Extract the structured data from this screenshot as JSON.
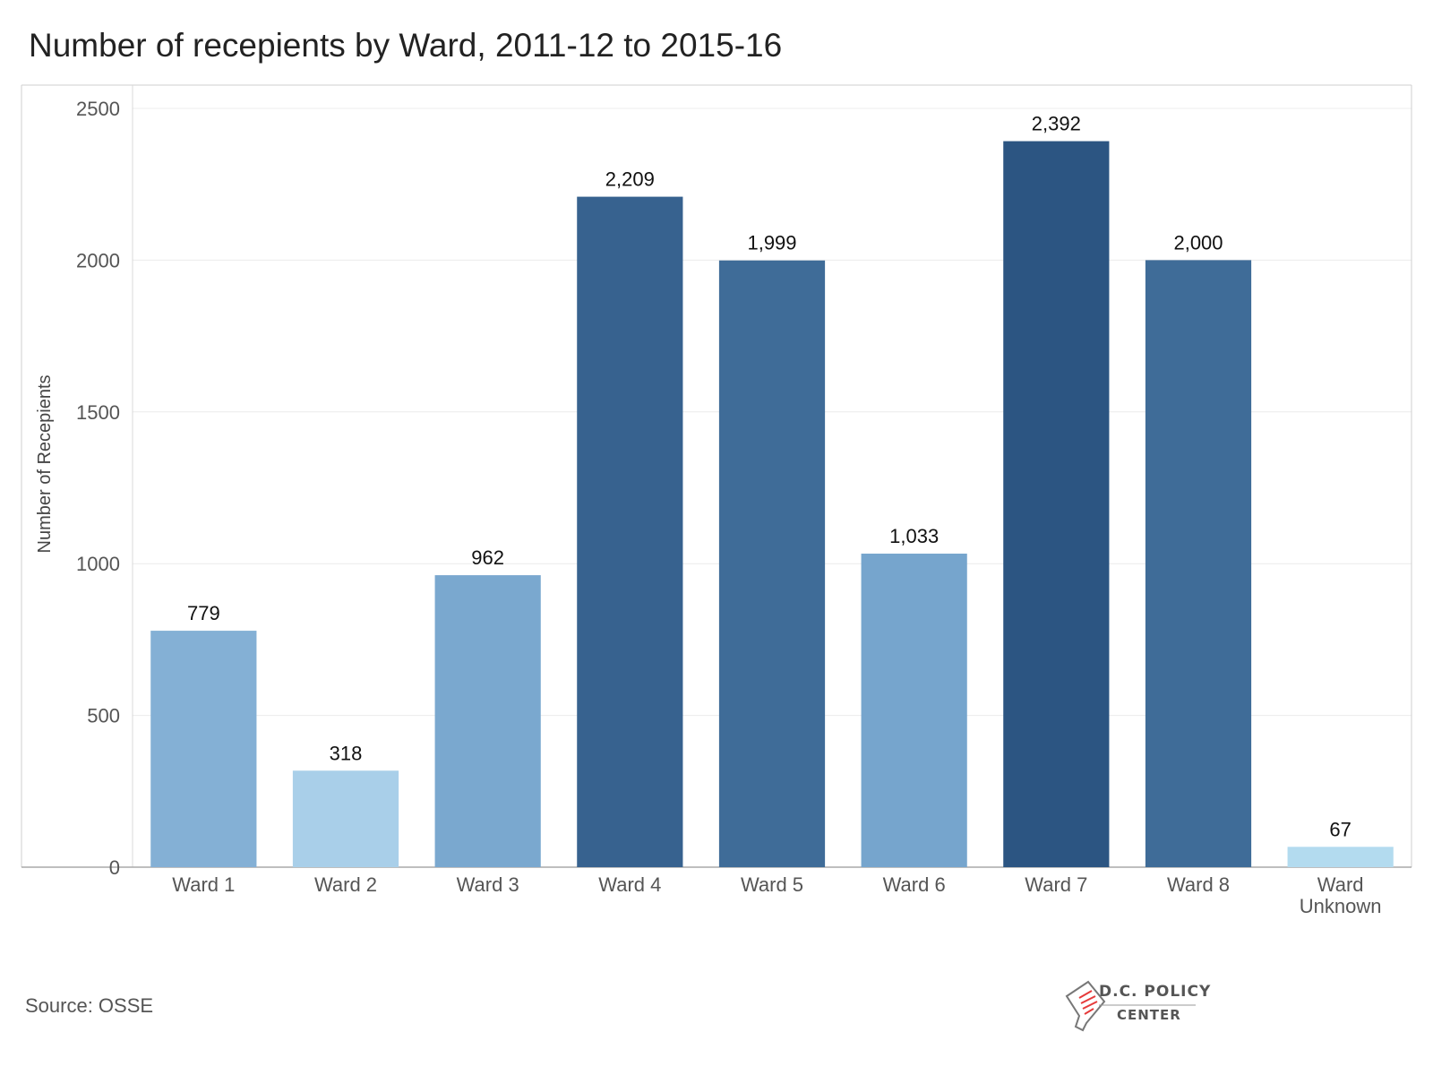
{
  "chart_data": {
    "type": "bar",
    "title": "Number of recepients by Ward, 2011-12 to 2015-16",
    "ylabel": "Number of Recepients",
    "xlabel": "",
    "categories": [
      "Ward 1",
      "Ward 2",
      "Ward 3",
      "Ward 4",
      "Ward 5",
      "Ward 6",
      "Ward 7",
      "Ward 8",
      "Ward Unknown"
    ],
    "values": [
      779,
      318,
      962,
      2209,
      1999,
      1033,
      2392,
      2000,
      67
    ],
    "value_labels": [
      "779",
      "318",
      "962",
      "2,209",
      "1,999",
      "1,033",
      "2,392",
      "2,000",
      "67"
    ],
    "bar_colors": [
      "#84b0d5",
      "#a9cfe9",
      "#7aa8cf",
      "#37628f",
      "#3f6c98",
      "#76a5cd",
      "#2c5582",
      "#3f6c98",
      "#b3dbef"
    ],
    "ylim": [
      0,
      2500
    ],
    "yticks": [
      0,
      500,
      1000,
      1500,
      2000,
      2500
    ],
    "ytick_labels": [
      "0",
      "500",
      "1000",
      "1500",
      "2000",
      "2500"
    ],
    "grid": true,
    "legend": "none"
  },
  "source": "Source: OSSE",
  "logo": {
    "line1": "D.C. POLICY",
    "line2": "CENTER"
  }
}
